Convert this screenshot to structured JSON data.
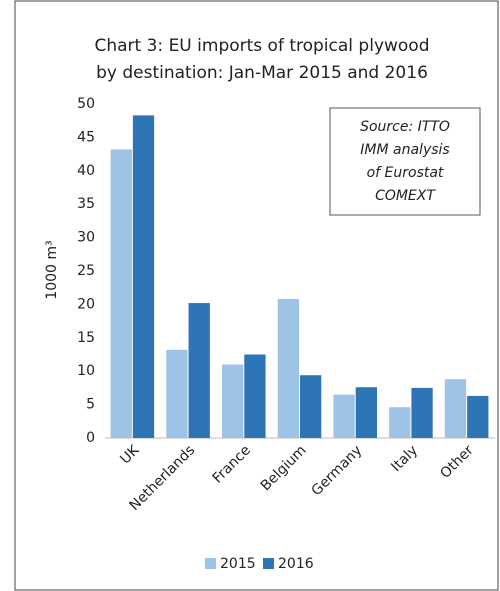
{
  "chart_data": {
    "type": "bar",
    "title": [
      "Chart 3: EU imports of tropical plywood",
      "by destination: Jan-Mar 2015 and 2016"
    ],
    "y_label": "1000 m³",
    "annotation": [
      "Source: ITTO",
      "IMM analysis",
      "of Eurostat",
      "COMEXT"
    ],
    "categories": [
      "UK",
      "Netherlands",
      "France",
      "Belgium",
      "Germany",
      "Italy",
      "Other"
    ],
    "series": [
      {
        "name": "2015",
        "color": "#9dc3e6",
        "values": [
          43.2,
          13.2,
          11,
          20.8,
          6.5,
          4.6,
          8.8
        ]
      },
      {
        "name": "2016",
        "color": "#2e75b6",
        "values": [
          48.3,
          20.2,
          12.5,
          9.4,
          7.6,
          7.5,
          6.3
        ]
      }
    ],
    "ylim": [
      0,
      50
    ],
    "yticks": [
      0,
      5,
      10,
      15,
      20,
      25,
      30,
      35,
      40,
      45,
      50
    ]
  }
}
